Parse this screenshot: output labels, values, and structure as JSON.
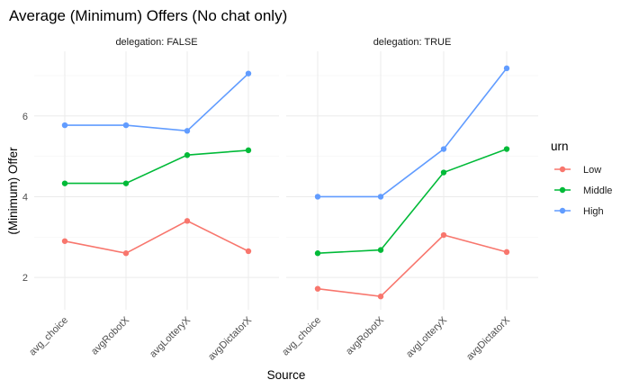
{
  "chart_data": {
    "type": "line",
    "title": "Average (Minimum) Offers (No chat only)",
    "xlabel": "Source",
    "ylabel": "(Minimum) Offer",
    "categories": [
      "avg_choice",
      "avgRobotX",
      "avgLotteryX",
      "avgDictatorX"
    ],
    "ylim": [
      1.2,
      7.6
    ],
    "yticks": [
      2,
      4,
      6
    ],
    "grid": true,
    "legend": {
      "title": "urn",
      "position": "right",
      "entries": [
        "Low",
        "Middle",
        "High"
      ]
    },
    "colors": {
      "Low": "#f8766d",
      "Middle": "#00ba38",
      "High": "#619cff"
    },
    "panels": [
      {
        "strip": "delegation: FALSE",
        "series": [
          {
            "name": "Low",
            "values": [
              2.9,
              2.6,
              3.4,
              2.65
            ]
          },
          {
            "name": "Middle",
            "values": [
              4.33,
              4.33,
              5.03,
              5.15
            ]
          },
          {
            "name": "High",
            "values": [
              5.77,
              5.77,
              5.63,
              7.05
            ]
          }
        ]
      },
      {
        "strip": "delegation: TRUE",
        "series": [
          {
            "name": "Low",
            "values": [
              1.72,
              1.53,
              3.05,
              2.63
            ]
          },
          {
            "name": "Middle",
            "values": [
              2.6,
              2.68,
              4.6,
              5.18
            ]
          },
          {
            "name": "High",
            "values": [
              4.0,
              4.0,
              5.18,
              7.18
            ]
          }
        ]
      }
    ]
  }
}
